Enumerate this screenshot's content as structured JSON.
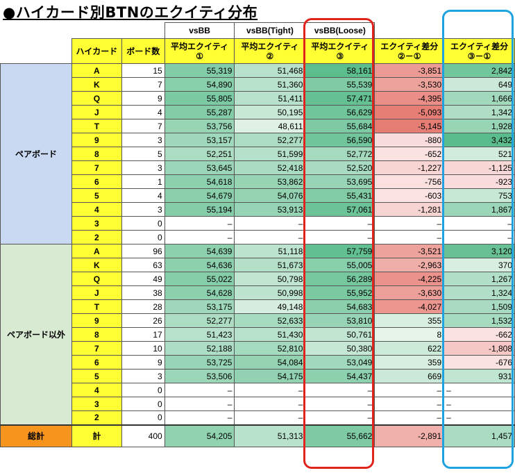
{
  "title": "●ハイカード別BTNのエクイティ分布",
  "header_top": [
    "vsBB",
    "vsBB(Tight)",
    "vsBB(Loose)"
  ],
  "headers": [
    "ハイカード",
    "ボード数",
    "平均エクイティ\n①",
    "平均エクイティ\n②",
    "平均エクイティ\n③",
    "エクイティ差分\n②－①",
    "エクイティ差分\n③－①"
  ],
  "groups": [
    {
      "label": "ペアボード",
      "rows": [
        {
          "card": "A",
          "boards": "15",
          "eq1": "55,319",
          "eq2": "51,468",
          "eq3": "58,161",
          "d21": "-3,851",
          "d31": "2,842"
        },
        {
          "card": "K",
          "boards": "7",
          "eq1": "54,890",
          "eq2": "51,360",
          "eq3": "55,539",
          "d21": "-3,530",
          "d31": "649"
        },
        {
          "card": "Q",
          "boards": "9",
          "eq1": "55,805",
          "eq2": "51,411",
          "eq3": "57,471",
          "d21": "-4,395",
          "d31": "1,666"
        },
        {
          "card": "J",
          "boards": "4",
          "eq1": "55,287",
          "eq2": "50,195",
          "eq3": "56,629",
          "d21": "-5,093",
          "d31": "1,342"
        },
        {
          "card": "T",
          "boards": "7",
          "eq1": "53,756",
          "eq2": "48,611",
          "eq3": "55,684",
          "d21": "-5,145",
          "d31": "1,928"
        },
        {
          "card": "9",
          "boards": "3",
          "eq1": "53,157",
          "eq2": "52,277",
          "eq3": "56,590",
          "d21": "-880",
          "d31": "3,432"
        },
        {
          "card": "8",
          "boards": "5",
          "eq1": "52,251",
          "eq2": "51,599",
          "eq3": "52,772",
          "d21": "-652",
          "d31": "521"
        },
        {
          "card": "7",
          "boards": "3",
          "eq1": "53,645",
          "eq2": "52,418",
          "eq3": "52,520",
          "d21": "-1,227",
          "d31": "-1,125"
        },
        {
          "card": "6",
          "boards": "1",
          "eq1": "54,618",
          "eq2": "53,862",
          "eq3": "53,695",
          "d21": "-756",
          "d31": "-923"
        },
        {
          "card": "5",
          "boards": "4",
          "eq1": "54,679",
          "eq2": "54,076",
          "eq3": "55,431",
          "d21": "-603",
          "d31": "753"
        },
        {
          "card": "4",
          "boards": "3",
          "eq1": "55,194",
          "eq2": "53,913",
          "eq3": "57,061",
          "d21": "-1,281",
          "d31": "1,867"
        },
        {
          "card": "3",
          "boards": "0",
          "eq1": "–",
          "eq2": "–",
          "eq3": "–",
          "d21": "–",
          "d31": "–"
        },
        {
          "card": "2",
          "boards": "0",
          "eq1": "–",
          "eq2": "–",
          "eq3": "–",
          "d21": "–",
          "d31": "–"
        }
      ]
    },
    {
      "label": "ペアボード以外",
      "rows": [
        {
          "card": "A",
          "boards": "96",
          "eq1": "54,639",
          "eq2": "51,118",
          "eq3": "57,759",
          "d21": "-3,521",
          "d31": "3,120"
        },
        {
          "card": "K",
          "boards": "63",
          "eq1": "54,636",
          "eq2": "51,673",
          "eq3": "55,005",
          "d21": "-2,963",
          "d31": "370"
        },
        {
          "card": "Q",
          "boards": "49",
          "eq1": "55,022",
          "eq2": "50,798",
          "eq3": "56,289",
          "d21": "-4,225",
          "d31": "1,267"
        },
        {
          "card": "J",
          "boards": "38",
          "eq1": "54,628",
          "eq2": "50,998",
          "eq3": "55,952",
          "d21": "-3,630",
          "d31": "1,324"
        },
        {
          "card": "T",
          "boards": "28",
          "eq1": "53,175",
          "eq2": "49,148",
          "eq3": "54,683",
          "d21": "-4,027",
          "d31": "1,509"
        },
        {
          "card": "9",
          "boards": "26",
          "eq1": "52,277",
          "eq2": "52,633",
          "eq3": "53,810",
          "d21": "355",
          "d31": "1,532"
        },
        {
          "card": "8",
          "boards": "17",
          "eq1": "51,423",
          "eq2": "51,430",
          "eq3": "50,761",
          "d21": "8",
          "d31": "-662"
        },
        {
          "card": "7",
          "boards": "10",
          "eq1": "52,188",
          "eq2": "52,810",
          "eq3": "50,380",
          "d21": "622",
          "d31": "-1,808"
        },
        {
          "card": "6",
          "boards": "9",
          "eq1": "53,725",
          "eq2": "54,084",
          "eq3": "53,049",
          "d21": "359",
          "d31": "-676"
        },
        {
          "card": "5",
          "boards": "3",
          "eq1": "53,506",
          "eq2": "54,175",
          "eq3": "54,437",
          "d21": "669",
          "d31": "931"
        },
        {
          "card": "4",
          "boards": "0",
          "eq1": "–",
          "eq2": "–",
          "eq3": "–",
          "d21": "–",
          "d31": "–"
        },
        {
          "card": "3",
          "boards": "0",
          "eq1": "–",
          "eq2": "–",
          "eq3": "–",
          "d21": "–",
          "d31": "–"
        },
        {
          "card": "2",
          "boards": "0",
          "eq1": "–",
          "eq2": "–",
          "eq3": "–",
          "d21": "–",
          "d31": "–"
        }
      ]
    }
  ],
  "total": {
    "label": "総計",
    "card": "計",
    "boards": "400",
    "eq1": "54,205",
    "eq2": "51,313",
    "eq3": "55,662",
    "d21": "-2,891",
    "d31": "1,457"
  },
  "colors": {
    "green_strong": "#57bb8a",
    "green_light": "#e6f4ea",
    "red_strong": "#e67c73",
    "red_light": "#fdeeee",
    "yellow": "#ffff33",
    "orange": "#f7941d",
    "blue_group": "#c9d9f2",
    "green_group": "#d9ead3",
    "red_highlight": "#e0231c",
    "blue_highlight": "#1ea3e0"
  }
}
